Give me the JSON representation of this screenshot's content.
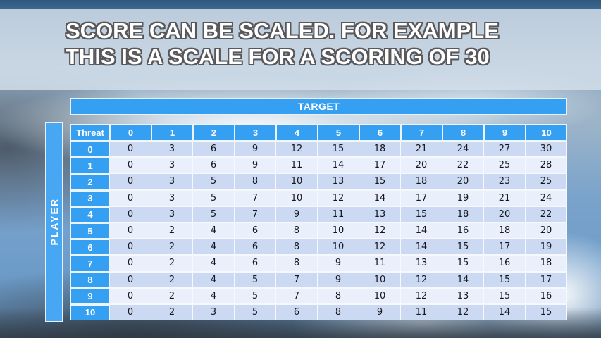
{
  "slide": {
    "title_line1": "SCORE CAN BE SCALED. FOR EXAMPLE",
    "title_line2": "THIS IS A SCALE FOR A SCORING OF 30"
  },
  "table": {
    "target_label": "TARGET",
    "player_label": "PLAYER",
    "corner_label": "Threat",
    "col_headers": [
      "0",
      "1",
      "2",
      "3",
      "4",
      "5",
      "6",
      "7",
      "8",
      "9",
      "10"
    ],
    "rows": [
      {
        "label": "0",
        "values": [
          0,
          3,
          6,
          9,
          12,
          15,
          18,
          21,
          24,
          27,
          30
        ]
      },
      {
        "label": "1",
        "values": [
          0,
          3,
          6,
          9,
          11,
          14,
          17,
          20,
          22,
          25,
          28
        ]
      },
      {
        "label": "2",
        "values": [
          0,
          3,
          5,
          8,
          10,
          13,
          15,
          18,
          20,
          23,
          25
        ]
      },
      {
        "label": "3",
        "values": [
          0,
          3,
          5,
          7,
          10,
          12,
          14,
          17,
          19,
          21,
          24
        ]
      },
      {
        "label": "4",
        "values": [
          0,
          3,
          5,
          7,
          9,
          11,
          13,
          15,
          18,
          20,
          22
        ]
      },
      {
        "label": "5",
        "values": [
          0,
          2,
          4,
          6,
          8,
          10,
          12,
          14,
          16,
          18,
          20
        ]
      },
      {
        "label": "6",
        "values": [
          0,
          2,
          4,
          6,
          8,
          10,
          12,
          14,
          15,
          17,
          19
        ]
      },
      {
        "label": "7",
        "values": [
          0,
          2,
          4,
          6,
          8,
          9,
          11,
          13,
          15,
          16,
          18
        ]
      },
      {
        "label": "8",
        "values": [
          0,
          2,
          4,
          5,
          7,
          9,
          10,
          12,
          14,
          15,
          17
        ]
      },
      {
        "label": "9",
        "values": [
          0,
          2,
          4,
          5,
          7,
          8,
          10,
          12,
          13,
          15,
          16
        ]
      },
      {
        "label": "10",
        "values": [
          0,
          2,
          3,
          5,
          6,
          8,
          9,
          11,
          12,
          14,
          15
        ]
      }
    ]
  },
  "colors": {
    "accent_blue": "#35a0f2",
    "row_even_bg": "#ccd9f2",
    "row_odd_bg": "#eaf0fb",
    "cell_text": "#16161e",
    "title_fill": "#ffffff",
    "title_outline": "#58585a",
    "banner_bg": "rgba(213,224,234,0.83)"
  }
}
